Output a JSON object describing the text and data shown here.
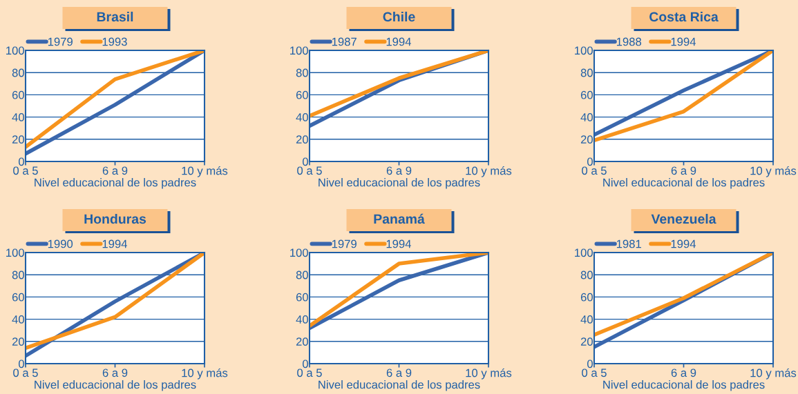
{
  "chart_data": [
    {
      "type": "line",
      "title": "Brasil",
      "categories": [
        "0 a 5",
        "6 a 9",
        "10 y más"
      ],
      "xlabel": "Nivel educacional de los padres",
      "ylim": [
        0,
        100
      ],
      "yticks": [
        0,
        20,
        40,
        60,
        80,
        100
      ],
      "grid": "y",
      "legend": "top left",
      "series": [
        {
          "name": "1979",
          "color": "#3a67ad",
          "values": [
            7,
            51,
            100
          ]
        },
        {
          "name": "1993",
          "color": "#f7941d",
          "values": [
            13,
            74,
            100
          ]
        }
      ]
    },
    {
      "type": "line",
      "title": "Chile",
      "categories": [
        "0 a 5",
        "6 a 9",
        "10 y más"
      ],
      "xlabel": "Nivel educacional de los padres",
      "ylim": [
        0,
        100
      ],
      "yticks": [
        0,
        20,
        40,
        60,
        80,
        100
      ],
      "grid": "y",
      "legend": "top left",
      "series": [
        {
          "name": "1987",
          "color": "#3a67ad",
          "values": [
            32,
            73,
            100
          ]
        },
        {
          "name": "1994",
          "color": "#f7941d",
          "values": [
            41,
            75,
            100
          ]
        }
      ]
    },
    {
      "type": "line",
      "title": "Costa Rica",
      "categories": [
        "0 a 5",
        "6 a 9",
        "10 y más"
      ],
      "xlabel": "Nivel educacional de los padres",
      "ylim": [
        0,
        100
      ],
      "yticks": [
        0,
        20,
        40,
        60,
        80,
        100
      ],
      "grid": "y",
      "legend": "top left",
      "series": [
        {
          "name": "1988",
          "color": "#3a67ad",
          "values": [
            24,
            64,
            100
          ]
        },
        {
          "name": "1994",
          "color": "#f7941d",
          "values": [
            19,
            45,
            100
          ]
        }
      ]
    },
    {
      "type": "line",
      "title": "Honduras",
      "categories": [
        "0 a 5",
        "6 a 9",
        "10 y más"
      ],
      "xlabel": "Nivel educacional de los padres",
      "ylim": [
        0,
        100
      ],
      "yticks": [
        0,
        20,
        40,
        60,
        80,
        100
      ],
      "grid": "y",
      "legend": "top left",
      "series": [
        {
          "name": "1990",
          "color": "#3a67ad",
          "values": [
            7,
            56,
            100
          ]
        },
        {
          "name": "1994",
          "color": "#f7941d",
          "values": [
            14,
            42,
            100
          ]
        }
      ]
    },
    {
      "type": "line",
      "title": "Panamá",
      "categories": [
        "0 a 5",
        "6 a 9",
        "10 y más"
      ],
      "xlabel": "Nivel educacional de los padres",
      "ylim": [
        0,
        100
      ],
      "yticks": [
        0,
        20,
        40,
        60,
        80,
        100
      ],
      "grid": "y",
      "legend": "top left",
      "series": [
        {
          "name": "1979",
          "color": "#3a67ad",
          "values": [
            32,
            75,
            100
          ]
        },
        {
          "name": "1994",
          "color": "#f7941d",
          "values": [
            34,
            90,
            100
          ]
        }
      ]
    },
    {
      "type": "line",
      "title": "Venezuela",
      "categories": [
        "0 a 5",
        "6 a 9",
        "10 y más"
      ],
      "xlabel": "Nivel educacional de los padres",
      "ylim": [
        0,
        100
      ],
      "yticks": [
        0,
        20,
        40,
        60,
        80,
        100
      ],
      "grid": "y",
      "legend": "top left",
      "series": [
        {
          "name": "1981",
          "color": "#3a67ad",
          "values": [
            15,
            57,
            100
          ]
        },
        {
          "name": "1994",
          "color": "#f7941d",
          "values": [
            26,
            59,
            100
          ]
        }
      ]
    }
  ]
}
